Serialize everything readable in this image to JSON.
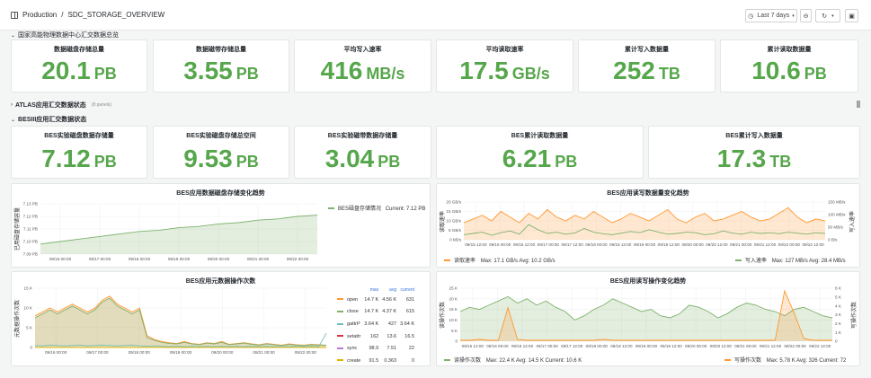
{
  "header": {
    "breadcrumb_root": "Production",
    "breadcrumb_sep": "/",
    "dashboard_title": "SDC_STORAGE_OVERVIEW",
    "time_range": "Last 7 days"
  },
  "rows": {
    "row1": "国家高能物理数据中心汇交数据总览",
    "row2": "ATLAS应用汇交数据状态",
    "row2_note": "(8 panels)",
    "row3": "BESIII应用汇交数据状态"
  },
  "stats_top": [
    {
      "title": "数据磁盘存储总量",
      "value": "20.1",
      "unit": "PB"
    },
    {
      "title": "数据磁带存储总量",
      "value": "3.55",
      "unit": "PB"
    },
    {
      "title": "平均写入速率",
      "value": "416",
      "unit": "MB/s"
    },
    {
      "title": "平均读取速率",
      "value": "17.5",
      "unit": "GB/s"
    },
    {
      "title": "累计写入数据量",
      "value": "252",
      "unit": "TB"
    },
    {
      "title": "累计读取数据量",
      "value": "10.6",
      "unit": "PB"
    }
  ],
  "stats_bes": [
    {
      "title": "BES实验磁盘数据存储量",
      "value": "7.12",
      "unit": "PB"
    },
    {
      "title": "BES实验磁盘存储总空间",
      "value": "9.53",
      "unit": "PB"
    },
    {
      "title": "BES实验磁带数据存储量",
      "value": "3.04",
      "unit": "PB"
    },
    {
      "title": "BES累计读取数据量",
      "value": "6.21",
      "unit": "PB"
    },
    {
      "title": "BES累计写入数据量",
      "value": "17.3",
      "unit": "TB"
    }
  ],
  "colors": {
    "green": "#56a64b",
    "orange": "#ff9830",
    "blue": "#5794f2",
    "cyan": "#73bfb8",
    "red": "#e02f44",
    "purple": "#b877d9",
    "olive": "#7eb26d",
    "apricot": "#e0b400"
  },
  "chart_data": [
    {
      "type": "area",
      "title": "BES应用数据磁盘存储变化趋势",
      "ylabel": "已用磁盘存储容量",
      "yticks": [
        "7.13 PB",
        "7.12 PB",
        "7.11 PB",
        "7.10 PB",
        "7.09 PB"
      ],
      "xticks": [
        "09/16 00:00",
        "09/17 00:00",
        "09/18 00:00",
        "09/19 00:00",
        "09/20 00:00",
        "09/21 00:00",
        "09/22 00:00"
      ],
      "ylim": [
        7.09,
        7.13
      ],
      "x": [
        0,
        0.5,
        1,
        1.5,
        2,
        2.5,
        3,
        3.5,
        4,
        4.5,
        5,
        5.5,
        6,
        6.5,
        7
      ],
      "series": [
        {
          "name": "BES磁盘存储情况",
          "current": "Current: 7.12 PB",
          "values": [
            7.098,
            7.1,
            7.102,
            7.104,
            7.106,
            7.108,
            7.109,
            7.111,
            7.112,
            7.114,
            7.115,
            7.117,
            7.118,
            7.12,
            7.121
          ]
        }
      ]
    },
    {
      "type": "line",
      "title": "BES应用读写数据量变化趋势",
      "ylabel": "读取速率",
      "ylabel_right": "写入速率",
      "yticks": [
        "20 GB/s",
        "15 GB/s",
        "10 GB/s",
        "5 GB/s",
        "0 kB/s"
      ],
      "yticks_right": [
        "150 MB/s",
        "100 MB/s",
        "50 MB/s",
        "0 B/s"
      ],
      "xticks": [
        "09/15 12:00",
        "09/16 00:00",
        "09/16 12:00",
        "09/17 00:00",
        "09/17 12:00",
        "09/18 00:00",
        "09/18 12:00",
        "09/19 00:00",
        "09/19 12:00",
        "09/20 00:00",
        "09/20 12:00",
        "09/21 00:00",
        "09/21 12:00",
        "09/22 00:00",
        "09/22 12:00"
      ],
      "series": [
        {
          "name": "读取速率",
          "stats": "Max: 17.1 GB/s  Avg: 10.2 GB/s",
          "values": [
            9,
            11,
            13,
            10,
            15,
            12,
            9,
            14,
            11,
            16,
            12,
            10,
            13,
            11,
            15,
            12,
            9,
            11,
            14,
            12,
            10,
            13,
            16,
            11,
            9,
            12,
            14,
            10,
            11,
            13,
            15,
            12,
            10,
            11,
            14,
            17,
            12,
            9,
            11,
            10
          ]
        },
        {
          "name": "写入速率",
          "stats": "Max: 127 MB/s  Avg: 28.4 MB/s",
          "values": [
            20,
            25,
            30,
            18,
            28,
            35,
            22,
            60,
            40,
            25,
            30,
            22,
            27,
            45,
            30,
            24,
            20,
            26,
            33,
            28,
            40,
            30,
            22,
            25,
            30,
            28,
            20,
            24,
            35,
            26,
            22,
            30,
            25,
            28,
            24,
            30,
            26,
            22,
            28,
            25
          ]
        }
      ]
    },
    {
      "type": "line",
      "title": "BES应用元数据操作次数",
      "ylabel": "元数据操作次数",
      "yticks": [
        "15 K",
        "10 K",
        "5 K",
        "0"
      ],
      "xticks": [
        "09/16 00:00",
        "09/17 00:00",
        "09/18 00:00",
        "09/19 00:00",
        "09/20 00:00",
        "09/21 00:00",
        "09/22 00:00"
      ],
      "table_headers": [
        "max",
        "avg",
        "current"
      ],
      "series": [
        {
          "name": "open",
          "max": "14.7 K",
          "avg": "4.56 K",
          "current": "631",
          "values": [
            8,
            9,
            10,
            9,
            10,
            11,
            10,
            9,
            10,
            12,
            13,
            11,
            10,
            9,
            10,
            3,
            2,
            1.5,
            1.2,
            1,
            1.5,
            1,
            0.8,
            1.2,
            1,
            1.5,
            0.8,
            1,
            1.2,
            0.9,
            0.7,
            1,
            0.8,
            0.6,
            0.9,
            0.7,
            0.6,
            0.8,
            0.7,
            0.6
          ]
        },
        {
          "name": "close",
          "max": "14.7 K",
          "avg": "4.37 K",
          "current": "615",
          "values": [
            7.5,
            8.5,
            9.5,
            8.5,
            9.5,
            10.5,
            9.5,
            8.5,
            9.5,
            11.5,
            12.5,
            10.5,
            9.5,
            8.5,
            9.5,
            2.5,
            1.8,
            1.3,
            1,
            0.9,
            1.3,
            0.9,
            0.7,
            1.1,
            0.9,
            1.3,
            0.7,
            0.9,
            1.1,
            0.8,
            0.6,
            0.9,
            0.7,
            0.5,
            0.8,
            0.6,
            0.5,
            0.7,
            0.6,
            0.6
          ]
        },
        {
          "name": "gattrP",
          "max": "3.64 K",
          "avg": "427",
          "current": "3.64 K",
          "values": [
            0.5,
            0.4,
            0.6,
            0.5,
            0.4,
            0.5,
            0.6,
            0.4,
            0.5,
            0.6,
            0.5,
            0.4,
            0.5,
            0.6,
            0.4,
            0.3,
            0.4,
            0.3,
            0.2,
            0.3,
            0.2,
            0.3,
            0.2,
            0.3,
            0.2,
            0.3,
            0.2,
            0.3,
            0.2,
            0.3,
            0.2,
            0.3,
            0.2,
            0.3,
            0.2,
            0.3,
            0.2,
            0.3,
            0.2,
            3.6
          ]
        },
        {
          "name": "setattr",
          "max": "162",
          "avg": "13.6",
          "current": "16.5",
          "values": [
            0,
            0,
            0,
            0,
            0,
            0,
            0,
            0,
            0,
            0,
            0,
            0,
            0,
            0,
            0,
            0,
            0,
            0,
            0,
            0,
            0,
            0,
            0,
            0,
            0,
            0,
            0,
            0,
            0,
            0,
            0,
            0,
            0,
            0,
            0,
            0,
            0,
            0,
            0,
            0
          ]
        },
        {
          "name": "sync",
          "max": "98.9",
          "avg": "7.51",
          "current": "22",
          "values": [
            0,
            0,
            0,
            0,
            0,
            0,
            0,
            0,
            0,
            0,
            0,
            0,
            0,
            0,
            0,
            0,
            0,
            0,
            0,
            0,
            0,
            0,
            0,
            0,
            0,
            0,
            0,
            0,
            0,
            0,
            0,
            0,
            0,
            0,
            0,
            0,
            0,
            0,
            0,
            0
          ]
        },
        {
          "name": "create",
          "max": "91.5",
          "avg": "0.363",
          "current": "0",
          "values": [
            0,
            0,
            0,
            0,
            0,
            0,
            0,
            0,
            0,
            0,
            0,
            0,
            0,
            0,
            0,
            0,
            0,
            0,
            0,
            0,
            0,
            0,
            0,
            0,
            0,
            0,
            0,
            0,
            0,
            0,
            0,
            0,
            0,
            0,
            0,
            0,
            0,
            0,
            0,
            0
          ]
        }
      ]
    },
    {
      "type": "line",
      "title": "BES应用读写操作变化趋势",
      "ylabel": "读操作次数",
      "ylabel_right": "写操作次数",
      "yticks": [
        "25 K",
        "20 K",
        "15 K",
        "10 K",
        "5 K",
        "0"
      ],
      "yticks_right": [
        "6 K",
        "5 K",
        "4 K",
        "3 K",
        "2 K",
        "1 K",
        "0"
      ],
      "xticks": [
        "09/15 12:00",
        "09/16 00:00",
        "09/16 12:00",
        "09/17 00:00",
        "09/17 12:00",
        "09/18 00:00",
        "09/18 12:00",
        "09/19 00:00",
        "09/19 12:00",
        "09/20 00:00",
        "09/20 12:00",
        "09/21 00:00",
        "09/21 12:00",
        "09/22 00:00",
        "09/22 12:00"
      ],
      "series": [
        {
          "name": "读操作次数",
          "stats": "Max: 22.4 K  Avg: 14.5 K  Current: 10.6 K",
          "values": [
            14,
            16,
            15,
            17,
            19,
            21,
            18,
            20,
            17,
            19,
            16,
            14,
            10,
            12,
            15,
            17,
            20,
            18,
            16,
            14,
            15,
            12,
            11,
            13,
            17,
            16,
            14,
            11,
            13,
            16,
            18,
            17,
            15,
            14,
            12,
            15,
            16,
            14,
            12,
            11
          ]
        },
        {
          "name": "写操作次数",
          "stats": "Max: 5.78 K  Avg: 326  Current: 72",
          "values": [
            0.1,
            0.1,
            0.2,
            0.1,
            0.1,
            3.8,
            0.2,
            0.1,
            0.1,
            0.1,
            0.1,
            0.1,
            0.1,
            0.1,
            0.1,
            0.2,
            0.1,
            0.1,
            0.1,
            0.1,
            0.1,
            0.1,
            0.1,
            0.1,
            0.1,
            0.1,
            0.1,
            0.1,
            0.1,
            0.1,
            0.1,
            0.1,
            0.1,
            0.1,
            5.7,
            3.2,
            0.3,
            0.1,
            0.1,
            0.1
          ]
        }
      ]
    }
  ]
}
